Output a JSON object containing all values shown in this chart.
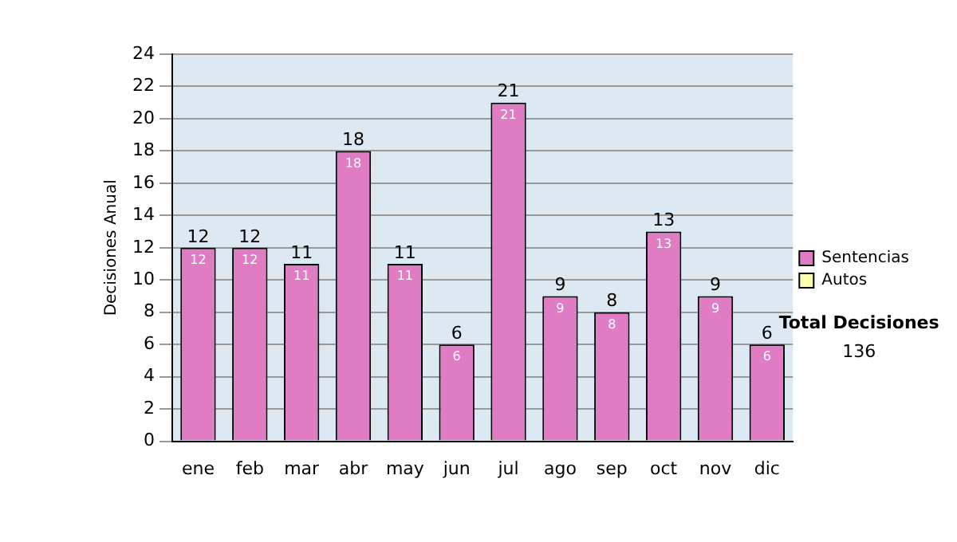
{
  "chart_data": {
    "type": "bar",
    "categories": [
      "ene",
      "feb",
      "mar",
      "abr",
      "may",
      "jun",
      "jul",
      "ago",
      "sep",
      "oct",
      "nov",
      "dic"
    ],
    "series": [
      {
        "name": "Sentencias",
        "color": "#e07cc4",
        "values": [
          12,
          12,
          11,
          18,
          11,
          6,
          21,
          9,
          8,
          13,
          9,
          6
        ]
      },
      {
        "name": "Autos",
        "color": "#ffffb0",
        "values": [
          null,
          null,
          null,
          null,
          null,
          null,
          null,
          null,
          null,
          null,
          null,
          null
        ]
      }
    ],
    "ylabel": "Decisiones Anual",
    "ylim": [
      0,
      24
    ],
    "yticks": [
      0,
      2,
      4,
      6,
      8,
      10,
      12,
      14,
      16,
      18,
      20,
      22,
      24
    ],
    "grid": "y",
    "legend": "right",
    "data_labels": true,
    "annotations": [
      "Total Decisiones",
      "136",
      {
        "text": "12",
        "x": "ene",
        "y": 12
      },
      {
        "text": "12",
        "x": "feb",
        "y": 12
      },
      {
        "text": "11",
        "x": "mar",
        "y": 11
      },
      {
        "text": "18",
        "x": "abr",
        "y": 18
      },
      {
        "text": "11",
        "x": "may",
        "y": 11
      },
      {
        "text": "6",
        "x": "jun",
        "y": 6
      },
      {
        "text": "21",
        "x": "jul",
        "y": 21
      },
      {
        "text": "9",
        "x": "ago",
        "y": 9
      },
      {
        "text": "8",
        "x": "sep",
        "y": 8
      },
      {
        "text": "13",
        "x": "oct",
        "y": 13
      },
      {
        "text": "9",
        "x": "nov",
        "y": 9
      },
      {
        "text": "6",
        "x": "dic",
        "y": 6
      }
    ]
  }
}
